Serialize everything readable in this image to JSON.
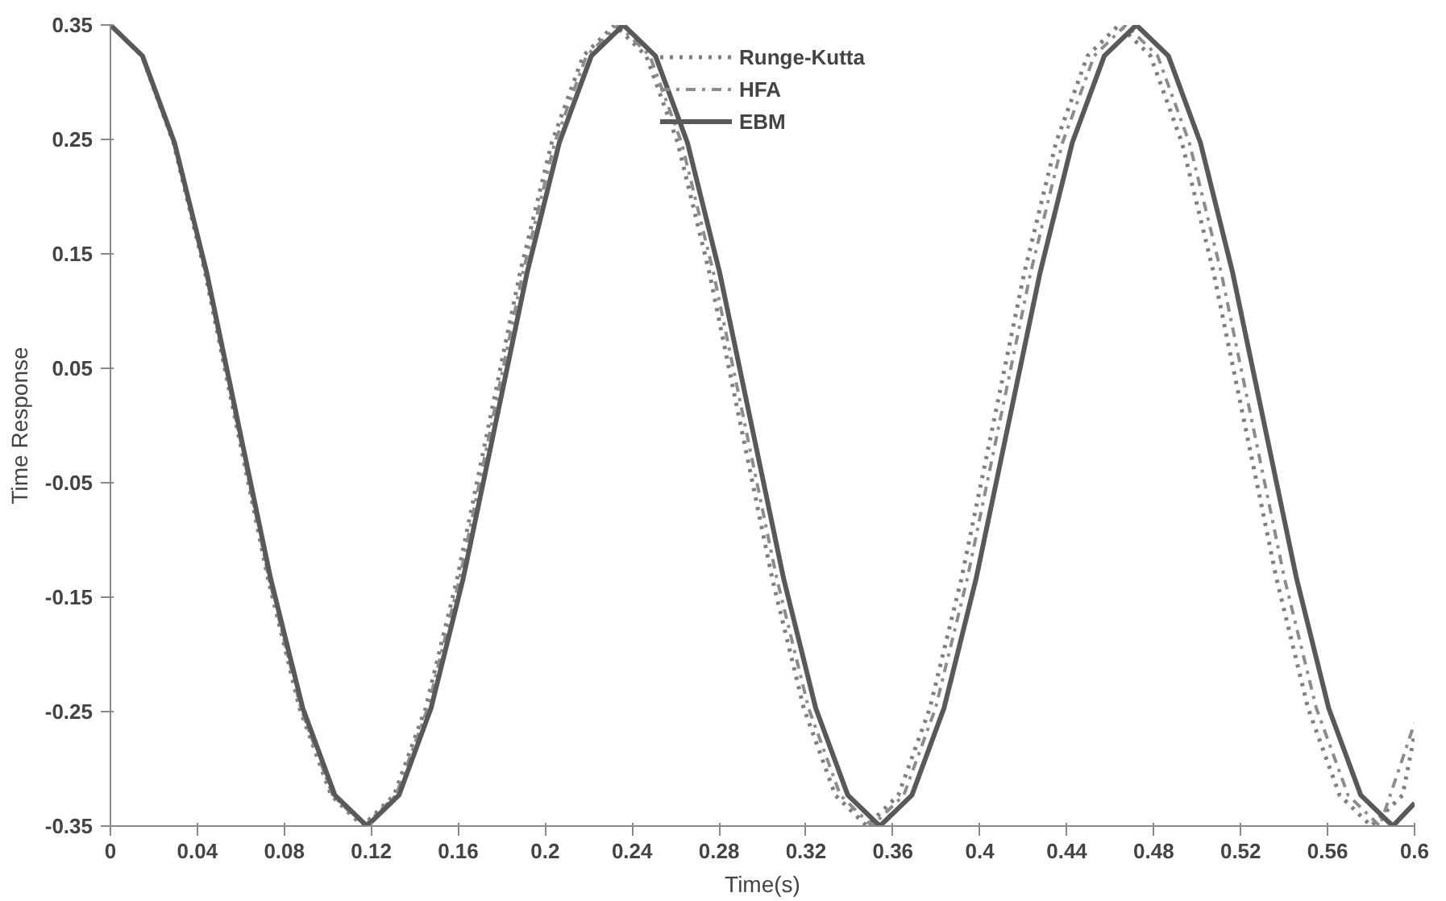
{
  "chart_data": {
    "type": "line",
    "xlabel": "Time(s)",
    "ylabel": "Time Response",
    "xlim": [
      0,
      0.6
    ],
    "ylim": [
      -0.35,
      0.35
    ],
    "xticks": [
      0,
      0.04,
      0.08,
      0.12,
      0.16,
      0.2,
      0.24,
      0.28,
      0.32,
      0.36,
      0.4,
      0.44,
      0.48,
      0.52,
      0.56,
      0.6
    ],
    "yticks": [
      {
        "value": -0.35,
        "label": "-0.35"
      },
      {
        "value": -0.25,
        "label": "-0.25"
      },
      {
        "value": -0.15,
        "label": "-0.15"
      },
      {
        "value": -0.05,
        "label": "-0.05"
      },
      {
        "value": 0.05,
        "label": "0.05"
      },
      {
        "value": 0.15,
        "label": "0.15"
      },
      {
        "value": 0.25,
        "label": "0.25"
      },
      {
        "value": 0.35,
        "label": "0.35"
      }
    ],
    "grid": false,
    "legend": "top",
    "marker": "none",
    "series": [
      {
        "name": "Runge-Kutta",
        "color": "#7f7f7f",
        "line_style": "dotted",
        "x": [
          0,
          0.0145,
          0.029,
          0.0435,
          0.058,
          0.0725,
          0.087,
          0.1015,
          0.116,
          0.1305,
          0.145,
          0.1595,
          0.174,
          0.1885,
          0.203,
          0.2175,
          0.232,
          0.2465,
          0.261,
          0.2755,
          0.29,
          0.3045,
          0.319,
          0.3335,
          0.348,
          0.3625,
          0.377,
          0.3915,
          0.406,
          0.4205,
          0.435,
          0.4495,
          0.464,
          0.4785,
          0.493,
          0.5075,
          0.522,
          0.5365,
          0.551,
          0.5655,
          0.58,
          0.5945,
          0.6
        ],
        "values": [
          0.35,
          0.323,
          0.247,
          0.134,
          0,
          -0.134,
          -0.247,
          -0.323,
          -0.35,
          -0.323,
          -0.247,
          -0.134,
          0,
          0.134,
          0.247,
          0.323,
          0.35,
          0.323,
          0.247,
          0.134,
          0,
          -0.134,
          -0.247,
          -0.323,
          -0.35,
          -0.323,
          -0.247,
          -0.134,
          0,
          0.134,
          0.247,
          0.323,
          0.35,
          0.323,
          0.247,
          0.134,
          0,
          -0.134,
          -0.247,
          -0.323,
          -0.35,
          -0.323,
          -0.27
        ]
      },
      {
        "name": "HFA",
        "color": "#8c8c8c",
        "line_style": "dashdot",
        "x": [
          0,
          0.0146,
          0.0292,
          0.0438,
          0.0584,
          0.073,
          0.0876,
          0.1022,
          0.1168,
          0.1314,
          0.146,
          0.1606,
          0.1752,
          0.1898,
          0.2044,
          0.219,
          0.2336,
          0.2482,
          0.2628,
          0.2774,
          0.292,
          0.3066,
          0.3212,
          0.3358,
          0.3504,
          0.365,
          0.3796,
          0.3942,
          0.4088,
          0.4234,
          0.438,
          0.4526,
          0.4672,
          0.4818,
          0.4964,
          0.511,
          0.5256,
          0.5402,
          0.5548,
          0.5694,
          0.584,
          0.6
        ],
        "values": [
          0.35,
          0.323,
          0.247,
          0.134,
          0,
          -0.134,
          -0.247,
          -0.323,
          -0.35,
          -0.323,
          -0.247,
          -0.134,
          0,
          0.134,
          0.247,
          0.323,
          0.35,
          0.323,
          0.247,
          0.134,
          0,
          -0.134,
          -0.247,
          -0.323,
          -0.35,
          -0.323,
          -0.247,
          -0.134,
          0,
          0.134,
          0.247,
          0.323,
          0.35,
          0.323,
          0.247,
          0.134,
          0,
          -0.134,
          -0.247,
          -0.323,
          -0.35,
          -0.26
        ]
      },
      {
        "name": "EBM",
        "color": "#595959",
        "line_style": "solid",
        "x": [
          0,
          0.01475,
          0.0295,
          0.04425,
          0.059,
          0.07375,
          0.0885,
          0.10325,
          0.118,
          0.13275,
          0.1475,
          0.16225,
          0.177,
          0.19175,
          0.2065,
          0.22125,
          0.236,
          0.25075,
          0.2655,
          0.28025,
          0.295,
          0.30975,
          0.3245,
          0.33925,
          0.354,
          0.36875,
          0.3835,
          0.39825,
          0.413,
          0.42775,
          0.4425,
          0.45725,
          0.472,
          0.48675,
          0.5015,
          0.51625,
          0.531,
          0.54575,
          0.5605,
          0.57525,
          0.59,
          0.6
        ],
        "values": [
          0.35,
          0.323,
          0.247,
          0.134,
          0,
          -0.134,
          -0.247,
          -0.323,
          -0.35,
          -0.323,
          -0.247,
          -0.134,
          0,
          0.134,
          0.247,
          0.323,
          0.35,
          0.323,
          0.247,
          0.134,
          0,
          -0.134,
          -0.247,
          -0.323,
          -0.35,
          -0.323,
          -0.247,
          -0.134,
          0,
          0.134,
          0.247,
          0.323,
          0.35,
          0.323,
          0.247,
          0.134,
          0,
          -0.134,
          -0.247,
          -0.323,
          -0.35,
          -0.33
        ]
      }
    ]
  }
}
